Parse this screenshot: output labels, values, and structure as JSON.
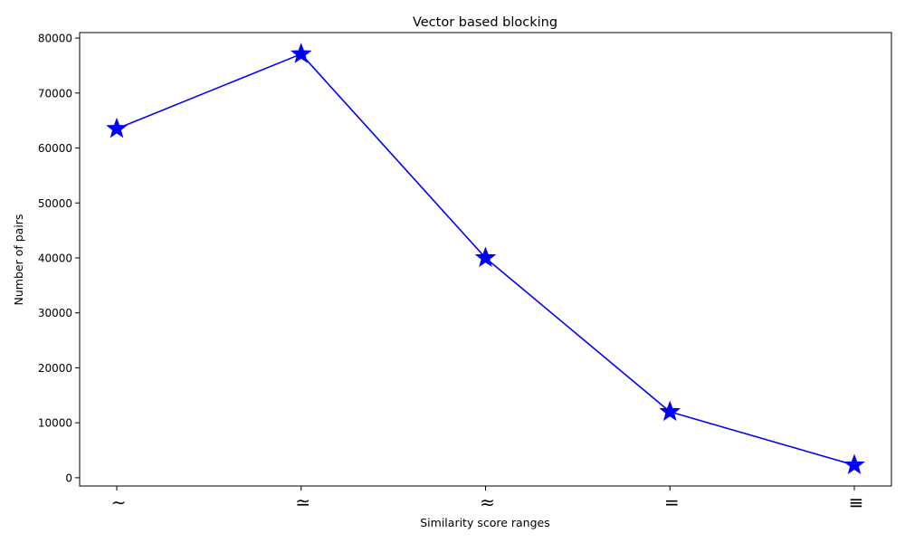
{
  "chart_data": {
    "type": "line",
    "title": "Vector based blocking",
    "xlabel": "Similarity score ranges",
    "ylabel": "Number of pairs",
    "categories": [
      "∼",
      "≃",
      "≈",
      "=",
      "≡"
    ],
    "series": [
      {
        "values": [
          63500,
          77100,
          40000,
          12000,
          2300
        ]
      }
    ],
    "ylim": [
      -1500,
      81000
    ],
    "yticks": [
      0,
      10000,
      20000,
      30000,
      40000,
      50000,
      60000,
      70000,
      80000
    ],
    "line_color": "#0000ff",
    "marker": "star",
    "grid": false,
    "legend": false
  }
}
